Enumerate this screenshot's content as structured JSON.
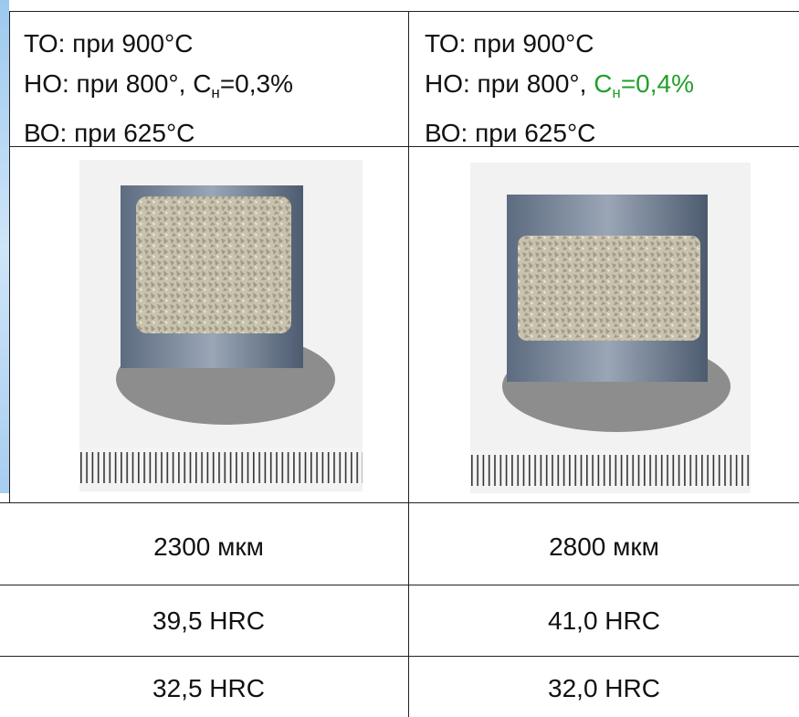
{
  "table": {
    "header": [
      {
        "to": "ТО: при 900°C",
        "no_prefix": "НО: при 800°, ",
        "no_c": "C",
        "no_sub": "н",
        "no_value": "=0,3%",
        "vo": "ВО: при 625°C"
      },
      {
        "to": "ТО: при 900°C",
        "no_prefix": "НО: при 800°, ",
        "no_c": "C",
        "no_sub": "н",
        "no_value": "=0,4%",
        "vo": "ВО: при 625°C"
      }
    ],
    "rows": [
      [
        "2300 мкм",
        "2800 мкм"
      ],
      [
        "39,5 HRC",
        "41,0 HRC"
      ],
      [
        "32,5 HRC",
        "32,0 HRC"
      ]
    ]
  }
}
